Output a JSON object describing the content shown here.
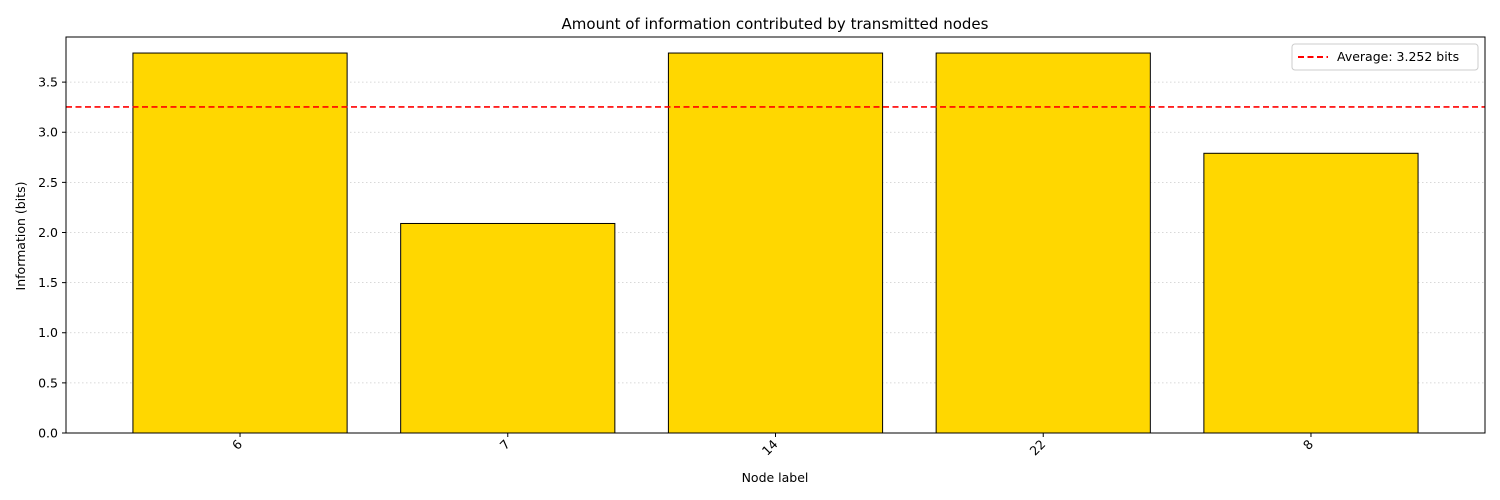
{
  "chart_data": {
    "type": "bar",
    "title": "Amount of information contributed by transmitted nodes",
    "xlabel": "Node label",
    "ylabel": "Information (bits)",
    "categories": [
      "6",
      "7",
      "14",
      "22",
      "8"
    ],
    "values": [
      3.79,
      2.09,
      3.79,
      3.79,
      2.79
    ],
    "ylim": [
      0,
      3.95
    ],
    "yticks": [
      "0.0",
      "0.5",
      "1.0",
      "1.5",
      "2.0",
      "2.5",
      "3.0",
      "3.5"
    ],
    "grid": "y-dotted",
    "bar_color": "#FFD700",
    "bar_edge_color": "#000000",
    "reference_line": {
      "value": 3.252,
      "style": "dashed",
      "color": "#FF0000",
      "label": "Average: 3.252 bits"
    },
    "legend": "top-right"
  }
}
